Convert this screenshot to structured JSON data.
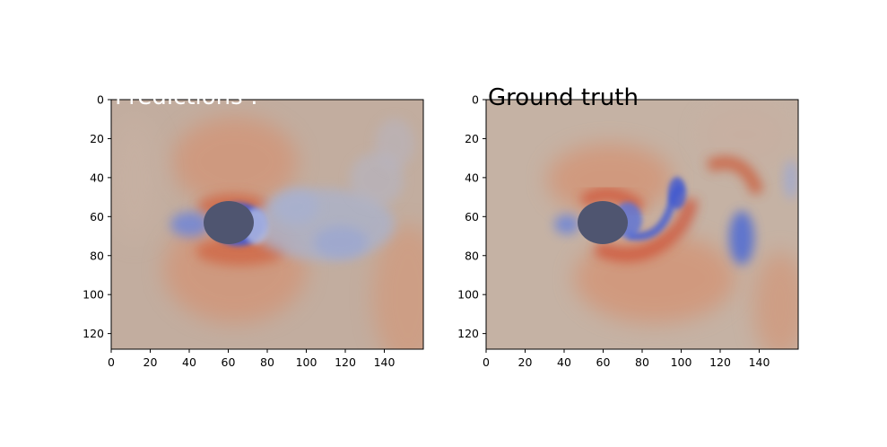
{
  "chart_data": [
    {
      "type": "heatmap",
      "title": "Predictions :",
      "xlabel": "",
      "ylabel": "",
      "xlim": [
        0,
        160
      ],
      "ylim": [
        128,
        0
      ],
      "x_ticks": [
        "0",
        "20",
        "40",
        "60",
        "80",
        "100",
        "120",
        "140"
      ],
      "y_ticks": [
        "0",
        "20",
        "40",
        "60",
        "80",
        "100",
        "120"
      ],
      "obstacle": {
        "center": [
          60,
          63
        ],
        "radius": 11
      },
      "colors": {
        "background": "#c2ad9f",
        "positive": "#d4653f",
        "negative": "#3b4bc4",
        "obstacle": "#4f5570"
      },
      "grid": false
    },
    {
      "type": "heatmap",
      "title": "Ground truth",
      "xlabel": "",
      "ylabel": "",
      "xlim": [
        0,
        160
      ],
      "ylim": [
        128,
        0
      ],
      "x_ticks": [
        "0",
        "20",
        "40",
        "60",
        "80",
        "100",
        "120",
        "140"
      ],
      "y_ticks": [
        "0",
        "20",
        "40",
        "60",
        "80",
        "100",
        "120"
      ],
      "obstacle": {
        "center": [
          60,
          63
        ],
        "radius": 11
      },
      "colors": {
        "background": "#c5b2a4",
        "positive": "#d4653f",
        "negative": "#3b4bc4",
        "obstacle": "#4f5570"
      },
      "grid": false
    }
  ]
}
